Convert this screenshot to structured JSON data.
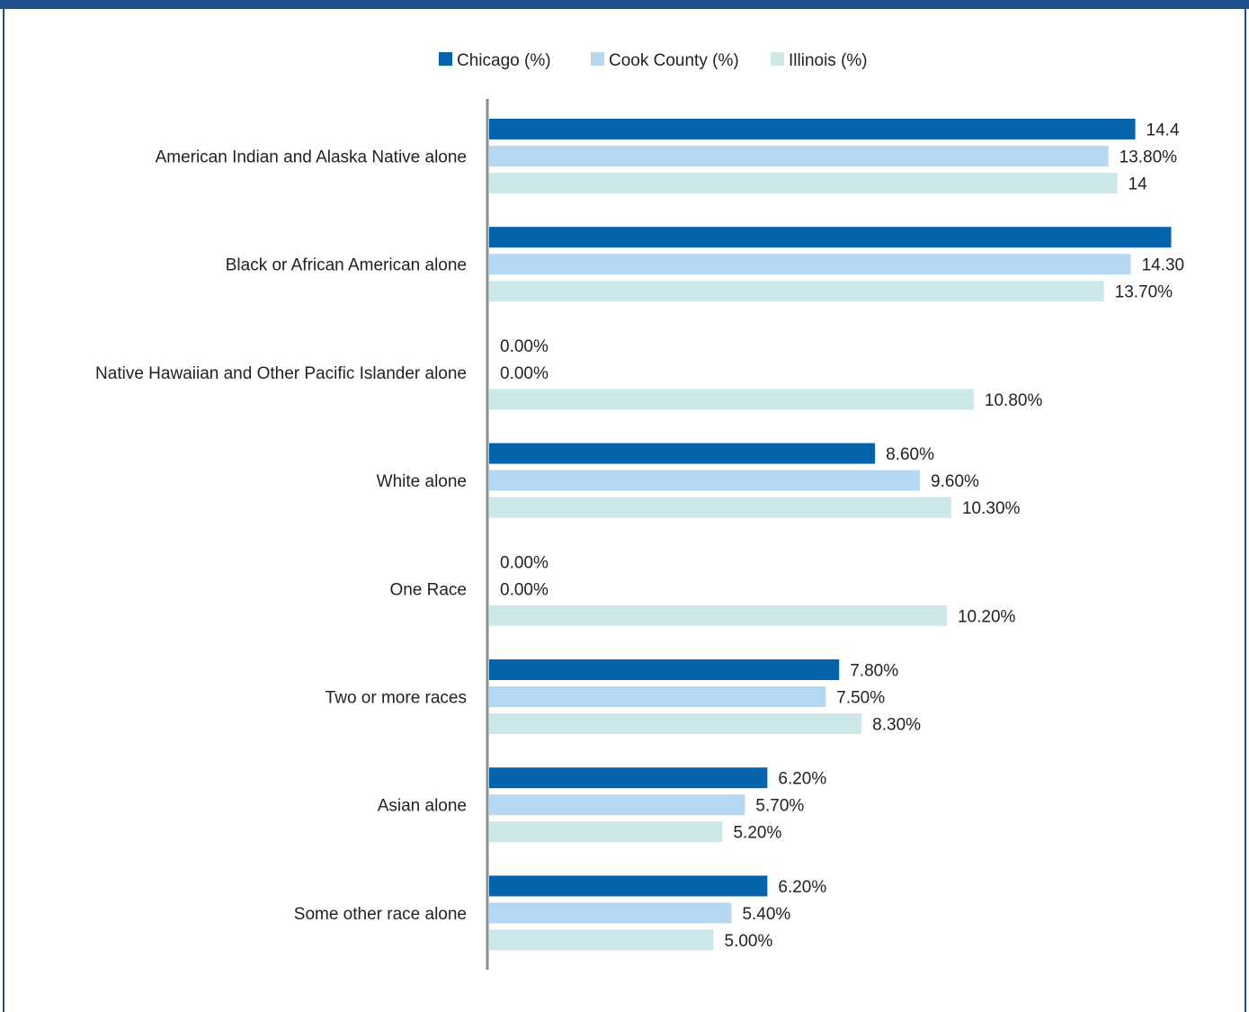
{
  "colors": {
    "chicago": "#0563ac",
    "cook_county": "#b5d7f1",
    "illinois": "#cde8e8",
    "frame": "#1f4e8c",
    "axis": "#8c8c8c"
  },
  "chart_data": {
    "type": "bar",
    "orientation": "horizontal",
    "title": "",
    "xlabel": "",
    "ylabel": "",
    "xlim": [
      0,
      15
    ],
    "grid": false,
    "legend_position": "top-center",
    "categories": [
      "American Indian and Alaska Native alone",
      "Black or African American alone",
      "Native Hawaiian  and Other Pacific Islander alone",
      "White alone",
      "One Race",
      "Two or more races",
      "Asian alone",
      "Some other race alone"
    ],
    "series": [
      {
        "name": "Chicago (%)",
        "color_key": "chicago",
        "values": [
          14.4,
          15.2,
          0,
          8.6,
          0,
          7.8,
          6.2,
          6.2
        ],
        "labels": [
          "14.4",
          "",
          "0.00%",
          "8.60%",
          "0.00%",
          "7.80%",
          "6.20%",
          "6.20%"
        ]
      },
      {
        "name": "Cook County (%)",
        "color_key": "cook_county",
        "values": [
          13.8,
          14.3,
          0,
          9.6,
          0,
          7.5,
          5.7,
          5.4
        ],
        "labels": [
          "13.80%",
          "14.30",
          "0.00%",
          "9.60%",
          "0.00%",
          "7.50%",
          "5.70%",
          "5.40%"
        ]
      },
      {
        "name": "Illinois (%)",
        "color_key": "illinois",
        "values": [
          14,
          13.7,
          10.8,
          10.3,
          10.2,
          8.3,
          5.2,
          5.0
        ],
        "labels": [
          "14",
          "13.70%",
          "10.80%",
          "10.30%",
          "10.20%",
          "8.30%",
          "5.20%",
          "5.00%"
        ]
      }
    ]
  }
}
